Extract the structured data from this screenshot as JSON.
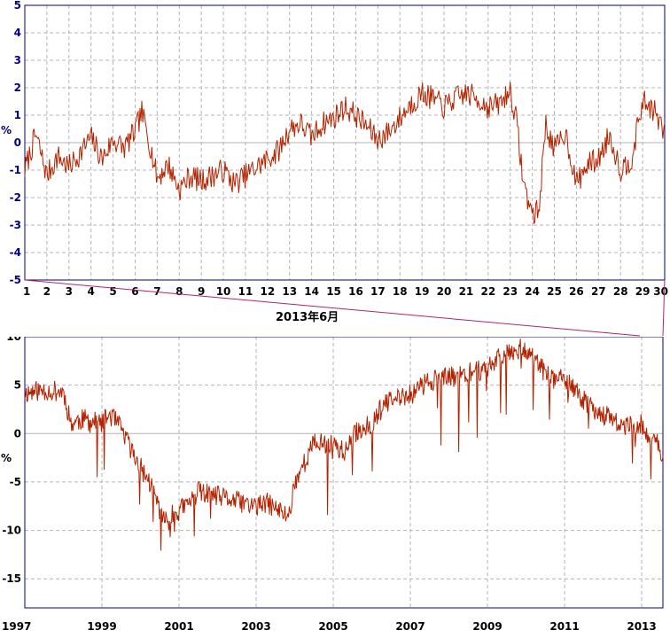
{
  "zoom_caption": "2013年6月",
  "colors": {
    "line": "#b22200",
    "frame": "#000080",
    "grid": "#b4b4b4",
    "zoom_link": "#b0246c",
    "background": "#ffffff"
  },
  "chart_data": [
    {
      "type": "line",
      "ylabel": "%",
      "ylim": [
        -5,
        5
      ],
      "yticks": [
        -5,
        -4,
        -3,
        -2,
        -1,
        0,
        1,
        2,
        3,
        4,
        5
      ],
      "xlim": [
        1,
        30
      ],
      "xticks": [
        1,
        2,
        3,
        4,
        5,
        6,
        7,
        8,
        9,
        10,
        11,
        12,
        13,
        14,
        15,
        16,
        17,
        18,
        19,
        20,
        21,
        22,
        23,
        24,
        25,
        26,
        27,
        28,
        29,
        30
      ],
      "grid": true,
      "series": [
        {
          "x": [
            1.0,
            1.5,
            2.0,
            2.5,
            3.0,
            3.5,
            4.0,
            4.5,
            5.0,
            5.5,
            6.0,
            6.3,
            6.6,
            7.0,
            7.5,
            8.0,
            8.5,
            9.0,
            9.5,
            10.0,
            10.5,
            11.0,
            11.5,
            12.0,
            12.5,
            13.0,
            13.5,
            14.0,
            14.5,
            15.0,
            15.5,
            16.0,
            16.5,
            17.0,
            17.5,
            18.0,
            18.5,
            19.0,
            19.5,
            20.0,
            20.5,
            21.0,
            21.5,
            22.0,
            22.5,
            23.0,
            23.3,
            23.6,
            24.0,
            24.3,
            24.6,
            25.0,
            25.5,
            26.0,
            26.5,
            27.0,
            27.5,
            28.0,
            28.5,
            29.0,
            29.5,
            30.0
          ],
          "y": [
            -1.0,
            0.3,
            -1.2,
            -0.5,
            -0.9,
            -0.4,
            0.2,
            -0.6,
            0.1,
            -0.2,
            0.4,
            1.1,
            0.2,
            -1.3,
            -0.8,
            -1.7,
            -1.2,
            -1.4,
            -1.2,
            -1.0,
            -1.5,
            -1.2,
            -0.9,
            -0.6,
            -0.3,
            0.5,
            0.7,
            0.2,
            0.7,
            0.9,
            1.3,
            1.0,
            0.6,
            0.1,
            0.4,
            0.9,
            1.4,
            1.8,
            1.6,
            1.3,
            1.6,
            1.8,
            1.6,
            1.3,
            1.4,
            1.9,
            0.7,
            -1.5,
            -2.6,
            -2.5,
            0.7,
            -0.3,
            0.4,
            -1.5,
            -0.8,
            -0.6,
            0.3,
            -1.0,
            -0.6,
            1.5,
            1.2,
            0.3
          ]
        }
      ]
    },
    {
      "type": "line",
      "ylabel": "%",
      "ylim": [
        -18,
        10
      ],
      "yticks": [
        -15,
        -10,
        -5,
        0,
        5,
        10
      ],
      "xlim": [
        1997.0,
        2013.55
      ],
      "xticks": [
        1997,
        1999,
        2001,
        2003,
        2005,
        2007,
        2009,
        2011,
        2013
      ],
      "grid": true,
      "series": [
        {
          "x": [
            1997.0,
            1997.5,
            1998.0,
            1998.2,
            1998.5,
            1999.0,
            1999.2,
            1999.5,
            1999.8,
            2000.0,
            2000.3,
            2000.6,
            2001.0,
            2001.3,
            2001.5,
            2002.0,
            2002.5,
            2003.0,
            2003.3,
            2003.6,
            2003.85,
            2004.0,
            2004.5,
            2005.0,
            2005.3,
            2005.6,
            2006.0,
            2006.3,
            2006.6,
            2007.0,
            2007.5,
            2008.0,
            2008.5,
            2009.0,
            2009.3,
            2009.6,
            2009.9,
            2010.1,
            2010.3,
            2010.6,
            2011.0,
            2011.3,
            2011.6,
            2012.0,
            2012.3,
            2012.6,
            2013.0,
            2013.2,
            2013.4,
            2013.55
          ],
          "y": [
            4.2,
            4.5,
            4.3,
            1.0,
            1.5,
            1.0,
            2.0,
            0.5,
            -2.0,
            -3.5,
            -5.5,
            -9.0,
            -8.0,
            -7.0,
            -6.0,
            -6.5,
            -7.0,
            -7.5,
            -7.2,
            -8.0,
            -8.5,
            -5.0,
            -1.0,
            -1.0,
            -2.0,
            0.2,
            1.0,
            3.0,
            3.5,
            4.0,
            5.5,
            5.8,
            6.2,
            6.8,
            8.0,
            8.6,
            8.8,
            8.5,
            7.2,
            5.8,
            5.5,
            4.3,
            3.0,
            2.0,
            1.2,
            0.7,
            1.0,
            -1.0,
            -0.5,
            -3.0
          ]
        }
      ]
    }
  ]
}
